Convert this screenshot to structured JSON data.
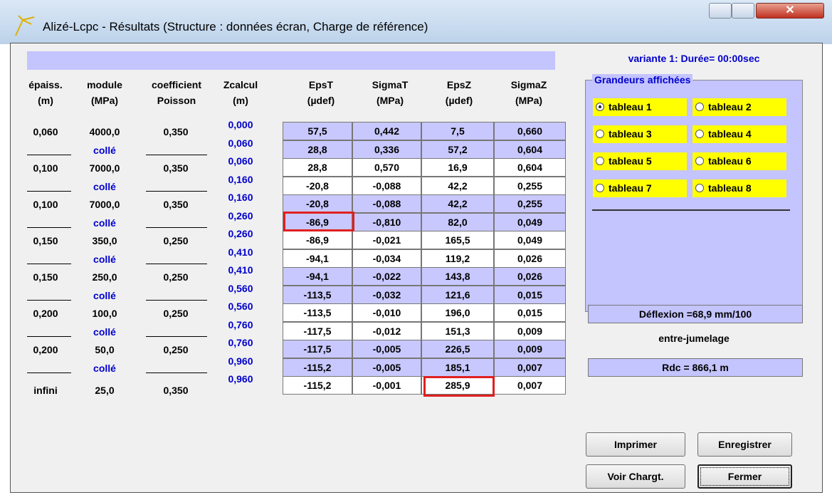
{
  "window": {
    "title": "Alizé-Lcpc - Résultats (Structure : données écran, Charge de référence)"
  },
  "table": {
    "headers": [
      [
        "épaiss.",
        "(m)"
      ],
      [
        "module",
        "(MPa)"
      ],
      [
        "coefficient",
        "Poisson"
      ],
      [
        "Zcalcul",
        "(m)"
      ],
      [
        "EpsT",
        "(µdef)"
      ],
      [
        "SigmaT",
        "(MPa)"
      ],
      [
        "EpsZ",
        "(µdef)"
      ],
      [
        "SigmaZ",
        "(MPa)"
      ]
    ],
    "layers": [
      {
        "thickness": "0,060",
        "modulus": "4000,0",
        "poisson": "0,350",
        "interface": "collé"
      },
      {
        "thickness": "0,100",
        "modulus": "7000,0",
        "poisson": "0,350",
        "interface": "collé"
      },
      {
        "thickness": "0,100",
        "modulus": "7000,0",
        "poisson": "0,350",
        "interface": "collé"
      },
      {
        "thickness": "0,150",
        "modulus": "350,0",
        "poisson": "0,250",
        "interface": "collé"
      },
      {
        "thickness": "0,150",
        "modulus": "250,0",
        "poisson": "0,250",
        "interface": "collé"
      },
      {
        "thickness": "0,200",
        "modulus": "100,0",
        "poisson": "0,250",
        "interface": "collé"
      },
      {
        "thickness": "0,200",
        "modulus": "50,0",
        "poisson": "0,250",
        "interface": "collé"
      },
      {
        "thickness": "infini",
        "modulus": "25,0",
        "poisson": "0,350"
      }
    ],
    "rows": [
      {
        "z": "0,000",
        "values": [
          "57,5",
          "0,442",
          "7,5",
          "0,660"
        ]
      },
      {
        "z": "0,060",
        "values": [
          "28,8",
          "0,336",
          "57,2",
          "0,604"
        ]
      },
      {
        "z": "0,060",
        "values": [
          "28,8",
          "0,570",
          "16,9",
          "0,604"
        ]
      },
      {
        "z": "0,160",
        "values": [
          "-20,8",
          "-0,088",
          "42,2",
          "0,255"
        ]
      },
      {
        "z": "0,160",
        "values": [
          "-20,8",
          "-0,088",
          "42,2",
          "0,255"
        ]
      },
      {
        "z": "0,260",
        "values": [
          "-86,9",
          "-0,810",
          "82,0",
          "0,049"
        ]
      },
      {
        "z": "0,260",
        "values": [
          "-86,9",
          "-0,021",
          "165,5",
          "0,049"
        ]
      },
      {
        "z": "0,410",
        "values": [
          "-94,1",
          "-0,034",
          "119,2",
          "0,026"
        ]
      },
      {
        "z": "0,410",
        "values": [
          "-94,1",
          "-0,022",
          "143,8",
          "0,026"
        ]
      },
      {
        "z": "0,560",
        "values": [
          "-113,5",
          "-0,032",
          "121,6",
          "0,015"
        ]
      },
      {
        "z": "0,560",
        "values": [
          "-113,5",
          "-0,010",
          "196,0",
          "0,015"
        ]
      },
      {
        "z": "0,760",
        "values": [
          "-117,5",
          "-0,012",
          "151,3",
          "0,009"
        ]
      },
      {
        "z": "0,760",
        "values": [
          "-117,5",
          "-0,005",
          "226,5",
          "0,009"
        ]
      },
      {
        "z": "0,960",
        "values": [
          "-115,2",
          "-0,005",
          "185,1",
          "0,007"
        ]
      },
      {
        "z": "0,960",
        "values": [
          "-115,2",
          "-0,001",
          "285,9",
          "0,007"
        ]
      }
    ]
  },
  "panel": {
    "variant": "variante 1:  Durée= 00:00sec",
    "group_title": "Grandeurs affichées",
    "options": [
      "tableau 1",
      "tableau 2",
      "tableau 3",
      "tableau 4",
      "tableau 5",
      "tableau 6",
      "tableau 7",
      "tableau 8"
    ],
    "selected": 0,
    "deflection": "Déflexion =68,9 mm/100",
    "position": "entre-jumelage",
    "rdc": "Rdc = 866,1 m",
    "buttons": [
      "Imprimer",
      "Enregistrer",
      "Voir Chargt.",
      "Fermer"
    ]
  }
}
